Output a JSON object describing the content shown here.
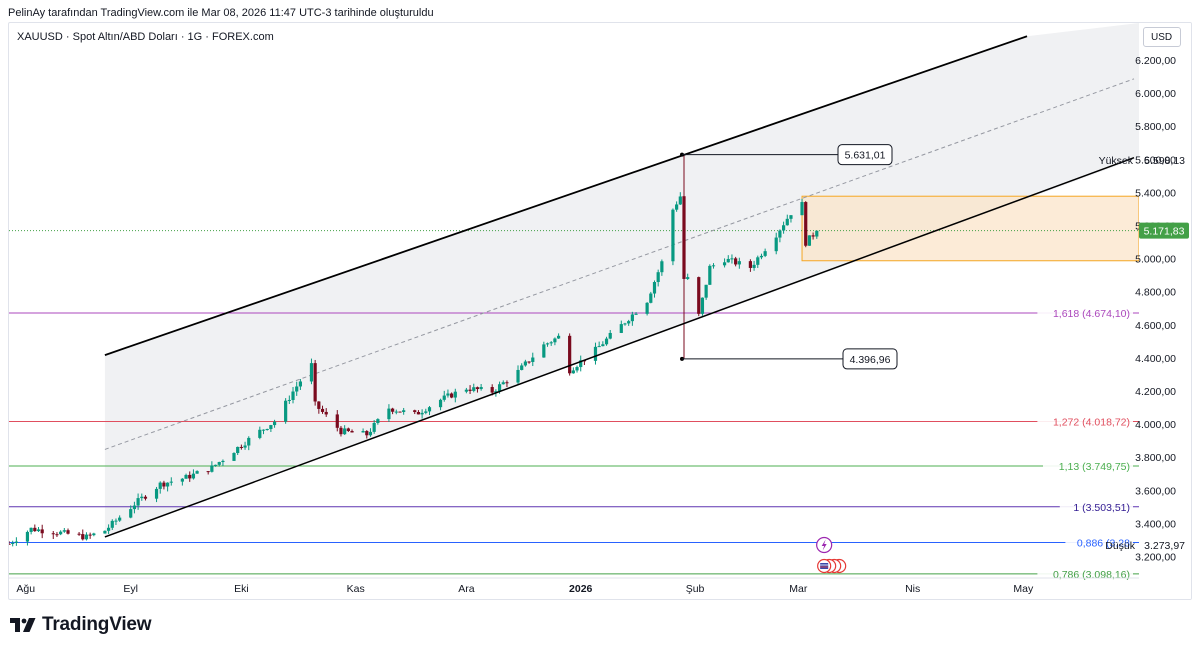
{
  "caption": "PelinAy tarafından TradingView.com ile Mar 08, 2026 11:47 UTC-3 tarihinde oluşturuldu",
  "symbol_line": "XAUUSD · Spot Altın/ABD Doları · 1G · FOREX.com",
  "currency": "USD",
  "brand": "TradingView",
  "colors": {
    "up": "#089981",
    "down": "#7a0a1e",
    "channel": "#000000",
    "midline": "#9598a1",
    "zone_fill": "#fbe4c9",
    "zone_border": "#f5a623",
    "last_price": "#43a047",
    "fib_1618": "#ab47bc",
    "fib_1272": "#e04e5e",
    "fib_113": "#4caf50",
    "fib_1": "#5e35b1",
    "fib_0886": "#2962ff",
    "fib_0786": "#43a047"
  },
  "icons": [
    "flash-event-icon",
    "us-flag-event-icon"
  ],
  "chart_data": {
    "type": "candlestick",
    "ylim": [
      3100,
      6300
    ],
    "y_ticks": [
      "3.200,00",
      "3.400,00",
      "3.600,00",
      "3.800,00",
      "4.000,00",
      "4.200,00",
      "4.400,00",
      "4.600,00",
      "4.800,00",
      "5.000,00",
      "5.200,00",
      "5.400,00",
      "5.600,00",
      "5.800,00",
      "6.000,00",
      "6.200,00"
    ],
    "y_tick_values": [
      3200,
      3400,
      3600,
      3800,
      4000,
      4200,
      4400,
      4600,
      4800,
      5000,
      5200,
      5400,
      5600,
      5800,
      6000,
      6200
    ],
    "x_ticks": [
      {
        "label": "Ağu",
        "date": "2025-08-01"
      },
      {
        "label": "Eyl",
        "date": "2025-09-01"
      },
      {
        "label": "Eki",
        "date": "2025-10-01"
      },
      {
        "label": "Kas",
        "date": "2025-11-01"
      },
      {
        "label": "Ara",
        "date": "2025-12-01"
      },
      {
        "label": "2026",
        "date": "2026-01-01",
        "bold": true
      },
      {
        "label": "Şub",
        "date": "2026-02-01"
      },
      {
        "label": "Mar",
        "date": "2026-03-01"
      },
      {
        "label": "Nis",
        "date": "2026-04-01"
      },
      {
        "label": "May",
        "date": "2026-05-01"
      }
    ],
    "x_range": [
      "2025-07-30",
      "2026-05-31"
    ],
    "close_path": [
      [
        "2025-07-30",
        3280
      ],
      [
        "2025-08-05",
        3370
      ],
      [
        "2025-08-12",
        3350
      ],
      [
        "2025-08-20",
        3320
      ],
      [
        "2025-08-25",
        3360
      ],
      [
        "2025-09-02",
        3520
      ],
      [
        "2025-09-09",
        3640
      ],
      [
        "2025-09-16",
        3680
      ],
      [
        "2025-09-23",
        3740
      ],
      [
        "2025-09-30",
        3860
      ],
      [
        "2025-10-06",
        3960
      ],
      [
        "2025-10-10",
        4020
      ],
      [
        "2025-10-15",
        4200
      ],
      [
        "2025-10-20",
        4360
      ],
      [
        "2025-10-21",
        4120
      ],
      [
        "2025-10-28",
        3960
      ],
      [
        "2025-11-04",
        3940
      ],
      [
        "2025-11-10",
        4100
      ],
      [
        "2025-11-17",
        4060
      ],
      [
        "2025-11-24",
        4150
      ],
      [
        "2025-12-01",
        4220
      ],
      [
        "2025-12-08",
        4200
      ],
      [
        "2025-12-15",
        4320
      ],
      [
        "2025-12-22",
        4480
      ],
      [
        "2025-12-26",
        4530
      ],
      [
        "2025-12-29",
        4330
      ],
      [
        "2026-01-05",
        4450
      ],
      [
        "2026-01-12",
        4600
      ],
      [
        "2026-01-19",
        4750
      ],
      [
        "2026-01-23",
        4980
      ],
      [
        "2026-01-26",
        5300
      ],
      [
        "2026-01-29",
        5420
      ],
      [
        "2026-01-30",
        4880
      ],
      [
        "2026-02-02",
        4660
      ],
      [
        "2026-02-05",
        4950
      ],
      [
        "2026-02-09",
        5000
      ],
      [
        "2026-02-16",
        4950
      ],
      [
        "2026-02-23",
        5150
      ],
      [
        "2026-02-27",
        5280
      ],
      [
        "2026-03-02",
        5330
      ],
      [
        "2026-03-03",
        5100
      ],
      [
        "2026-03-06",
        5171
      ]
    ],
    "annotations": {
      "high_label": "5.631,01",
      "high": {
        "date": "2026-01-29",
        "value": 5631.01
      },
      "low_label": "4.396,96",
      "low": {
        "date": "2026-01-29",
        "value": 4396.96
      },
      "last_price_label": "5.171,83",
      "last_price": 5171.83,
      "session_high_label": "Yüksek",
      "session_high_value": "5.598,13",
      "session_high": 5598.13,
      "session_low_label": "Düşük",
      "session_low_value": "3.273,97",
      "session_low": 3273.97
    },
    "channel": {
      "upper": [
        [
          "2025-08-25",
          4420
        ],
        [
          "2026-01-29",
          5630
        ]
      ],
      "lower": [
        [
          "2025-08-20",
          3280
        ],
        [
          "2026-02-04",
          4660
        ]
      ],
      "mid": [
        [
          "2025-08-25",
          3850
        ],
        [
          "2026-01-29",
          5110
        ]
      ]
    },
    "zone": {
      "from_date": "2026-03-02",
      "low": 4990,
      "high": 5380
    },
    "fib_levels": [
      {
        "label": "1,618 (4.674,10)",
        "value": 4674.1,
        "color_key": "fib_1618"
      },
      {
        "label": "1,272 (4.018,72)",
        "value": 4018.72,
        "color_key": "fib_1272"
      },
      {
        "label": "1,13 (3.749,75)",
        "value": 3749.75,
        "color_key": "fib_113"
      },
      {
        "label": "1 (3.503,51)",
        "value": 3503.51,
        "color_key": "fib_1"
      },
      {
        "label": "0,886 (3.28",
        "value": 3287.53,
        "color_key": "fib_0886"
      },
      {
        "label": "0,786 (3.098,16)",
        "value": 3098.16,
        "color_key": "fib_0786"
      }
    ]
  }
}
